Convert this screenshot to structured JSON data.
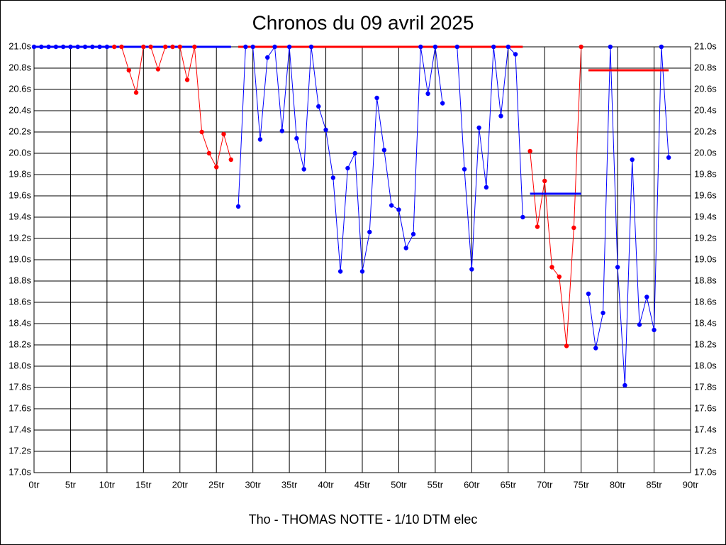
{
  "chart_data": {
    "type": "line",
    "title": "Chronos du 09 avril 2025",
    "xlabel": "Tho - THOMAS NOTTE - 1/10 DTM elec",
    "xlim": [
      0,
      90
    ],
    "ylim": [
      17.0,
      21.0
    ],
    "grid": true,
    "xticks": [
      {
        "value": 0,
        "label": "0tr"
      },
      {
        "value": 5,
        "label": "5tr"
      },
      {
        "value": 10,
        "label": "10tr"
      },
      {
        "value": 15,
        "label": "15tr"
      },
      {
        "value": 20,
        "label": "20tr"
      },
      {
        "value": 25,
        "label": "25tr"
      },
      {
        "value": 30,
        "label": "30tr"
      },
      {
        "value": 35,
        "label": "35tr"
      },
      {
        "value": 40,
        "label": "40tr"
      },
      {
        "value": 45,
        "label": "45tr"
      },
      {
        "value": 50,
        "label": "50tr"
      },
      {
        "value": 55,
        "label": "55tr"
      },
      {
        "value": 60,
        "label": "60tr"
      },
      {
        "value": 65,
        "label": "65tr"
      },
      {
        "value": 70,
        "label": "70tr"
      },
      {
        "value": 75,
        "label": "75tr"
      },
      {
        "value": 80,
        "label": "80tr"
      },
      {
        "value": 85,
        "label": "85tr"
      },
      {
        "value": 90,
        "label": "90tr"
      }
    ],
    "yticks": [
      {
        "value": 17.0,
        "label": "17.0s"
      },
      {
        "value": 17.2,
        "label": "17.2s"
      },
      {
        "value": 17.4,
        "label": "17.4s"
      },
      {
        "value": 17.6,
        "label": "17.6s"
      },
      {
        "value": 17.8,
        "label": "17.8s"
      },
      {
        "value": 18.0,
        "label": "18.0s"
      },
      {
        "value": 18.2,
        "label": "18.2s"
      },
      {
        "value": 18.4,
        "label": "18.4s"
      },
      {
        "value": 18.6,
        "label": "18.6s"
      },
      {
        "value": 18.8,
        "label": "18.8s"
      },
      {
        "value": 19.0,
        "label": "19.0s"
      },
      {
        "value": 19.2,
        "label": "19.2s"
      },
      {
        "value": 19.4,
        "label": "19.4s"
      },
      {
        "value": 19.6,
        "label": "19.6s"
      },
      {
        "value": 19.8,
        "label": "19.8s"
      },
      {
        "value": 20.0,
        "label": "20.0s"
      },
      {
        "value": 20.2,
        "label": "20.2s"
      },
      {
        "value": 20.4,
        "label": "20.4s"
      },
      {
        "value": 20.6,
        "label": "20.6s"
      },
      {
        "value": 20.8,
        "label": "20.8s"
      },
      {
        "value": 21.0,
        "label": "21.0s"
      }
    ],
    "series": [
      {
        "color": "#0000ff",
        "x": [
          0,
          1,
          2,
          3,
          4,
          5,
          6,
          7,
          8,
          9,
          10
        ],
        "values": [
          21.0,
          21.0,
          21.0,
          21.0,
          21.0,
          21.0,
          21.0,
          21.0,
          21.0,
          21.0,
          21.0
        ]
      },
      {
        "color": "#ff0000",
        "x": [
          11,
          12,
          13,
          14,
          15,
          16,
          17,
          18,
          19,
          20,
          21,
          22,
          23,
          24,
          25,
          26,
          27
        ],
        "values": [
          21.0,
          21.0,
          20.78,
          20.57,
          21.0,
          21.0,
          20.79,
          21.0,
          21.0,
          21.0,
          20.69,
          21.0,
          20.2,
          20.0,
          19.87,
          20.18,
          19.94
        ]
      },
      {
        "color": "#0000ff",
        "x": [
          28,
          29,
          30,
          31,
          32,
          33,
          34,
          35,
          36,
          37,
          38,
          39,
          40,
          41,
          42,
          43,
          44,
          45,
          46,
          47,
          48,
          49,
          50,
          51,
          52,
          53,
          54,
          55,
          56,
          57,
          58,
          59,
          60,
          61,
          62,
          63,
          64,
          65,
          66,
          67
        ],
        "values": [
          19.5,
          21.0,
          21.0,
          20.13,
          20.9,
          21.0,
          20.21,
          21.0,
          20.14,
          19.85,
          21.0,
          20.44,
          20.22,
          19.77,
          18.89,
          19.86,
          20.0,
          18.89,
          19.26,
          20.52,
          20.03,
          19.51,
          19.47,
          19.11,
          19.24,
          21.0,
          20.56,
          21.0,
          20.47,
          null,
          21.0,
          19.85,
          18.91,
          20.24,
          19.68,
          21.0,
          20.35,
          21.0,
          20.93,
          19.4
        ]
      },
      {
        "color": "#ff0000",
        "x": [
          68,
          69,
          70,
          71,
          72,
          73,
          74,
          75
        ],
        "values": [
          20.02,
          19.31,
          19.74,
          18.93,
          18.84,
          18.19,
          19.3,
          21.0
        ]
      },
      {
        "color": "#0000ff",
        "x": [
          76,
          77,
          78,
          79,
          80,
          81,
          82,
          83,
          84,
          85,
          86,
          87
        ],
        "values": [
          18.68,
          18.17,
          18.5,
          21.0,
          18.93,
          17.82,
          19.94,
          18.39,
          18.65,
          18.34,
          21.0,
          19.96
        ]
      }
    ],
    "reference_lines": [
      {
        "color": "#0000ff",
        "x": [
          0,
          27
        ],
        "value": 21.0
      },
      {
        "color": "#ff0000",
        "x": [
          28,
          67
        ],
        "value": 21.0
      },
      {
        "color": "#0000ff",
        "x": [
          68,
          75
        ],
        "value": 19.62
      },
      {
        "color": "#ff0000",
        "x": [
          76,
          87
        ],
        "value": 20.78
      }
    ]
  }
}
